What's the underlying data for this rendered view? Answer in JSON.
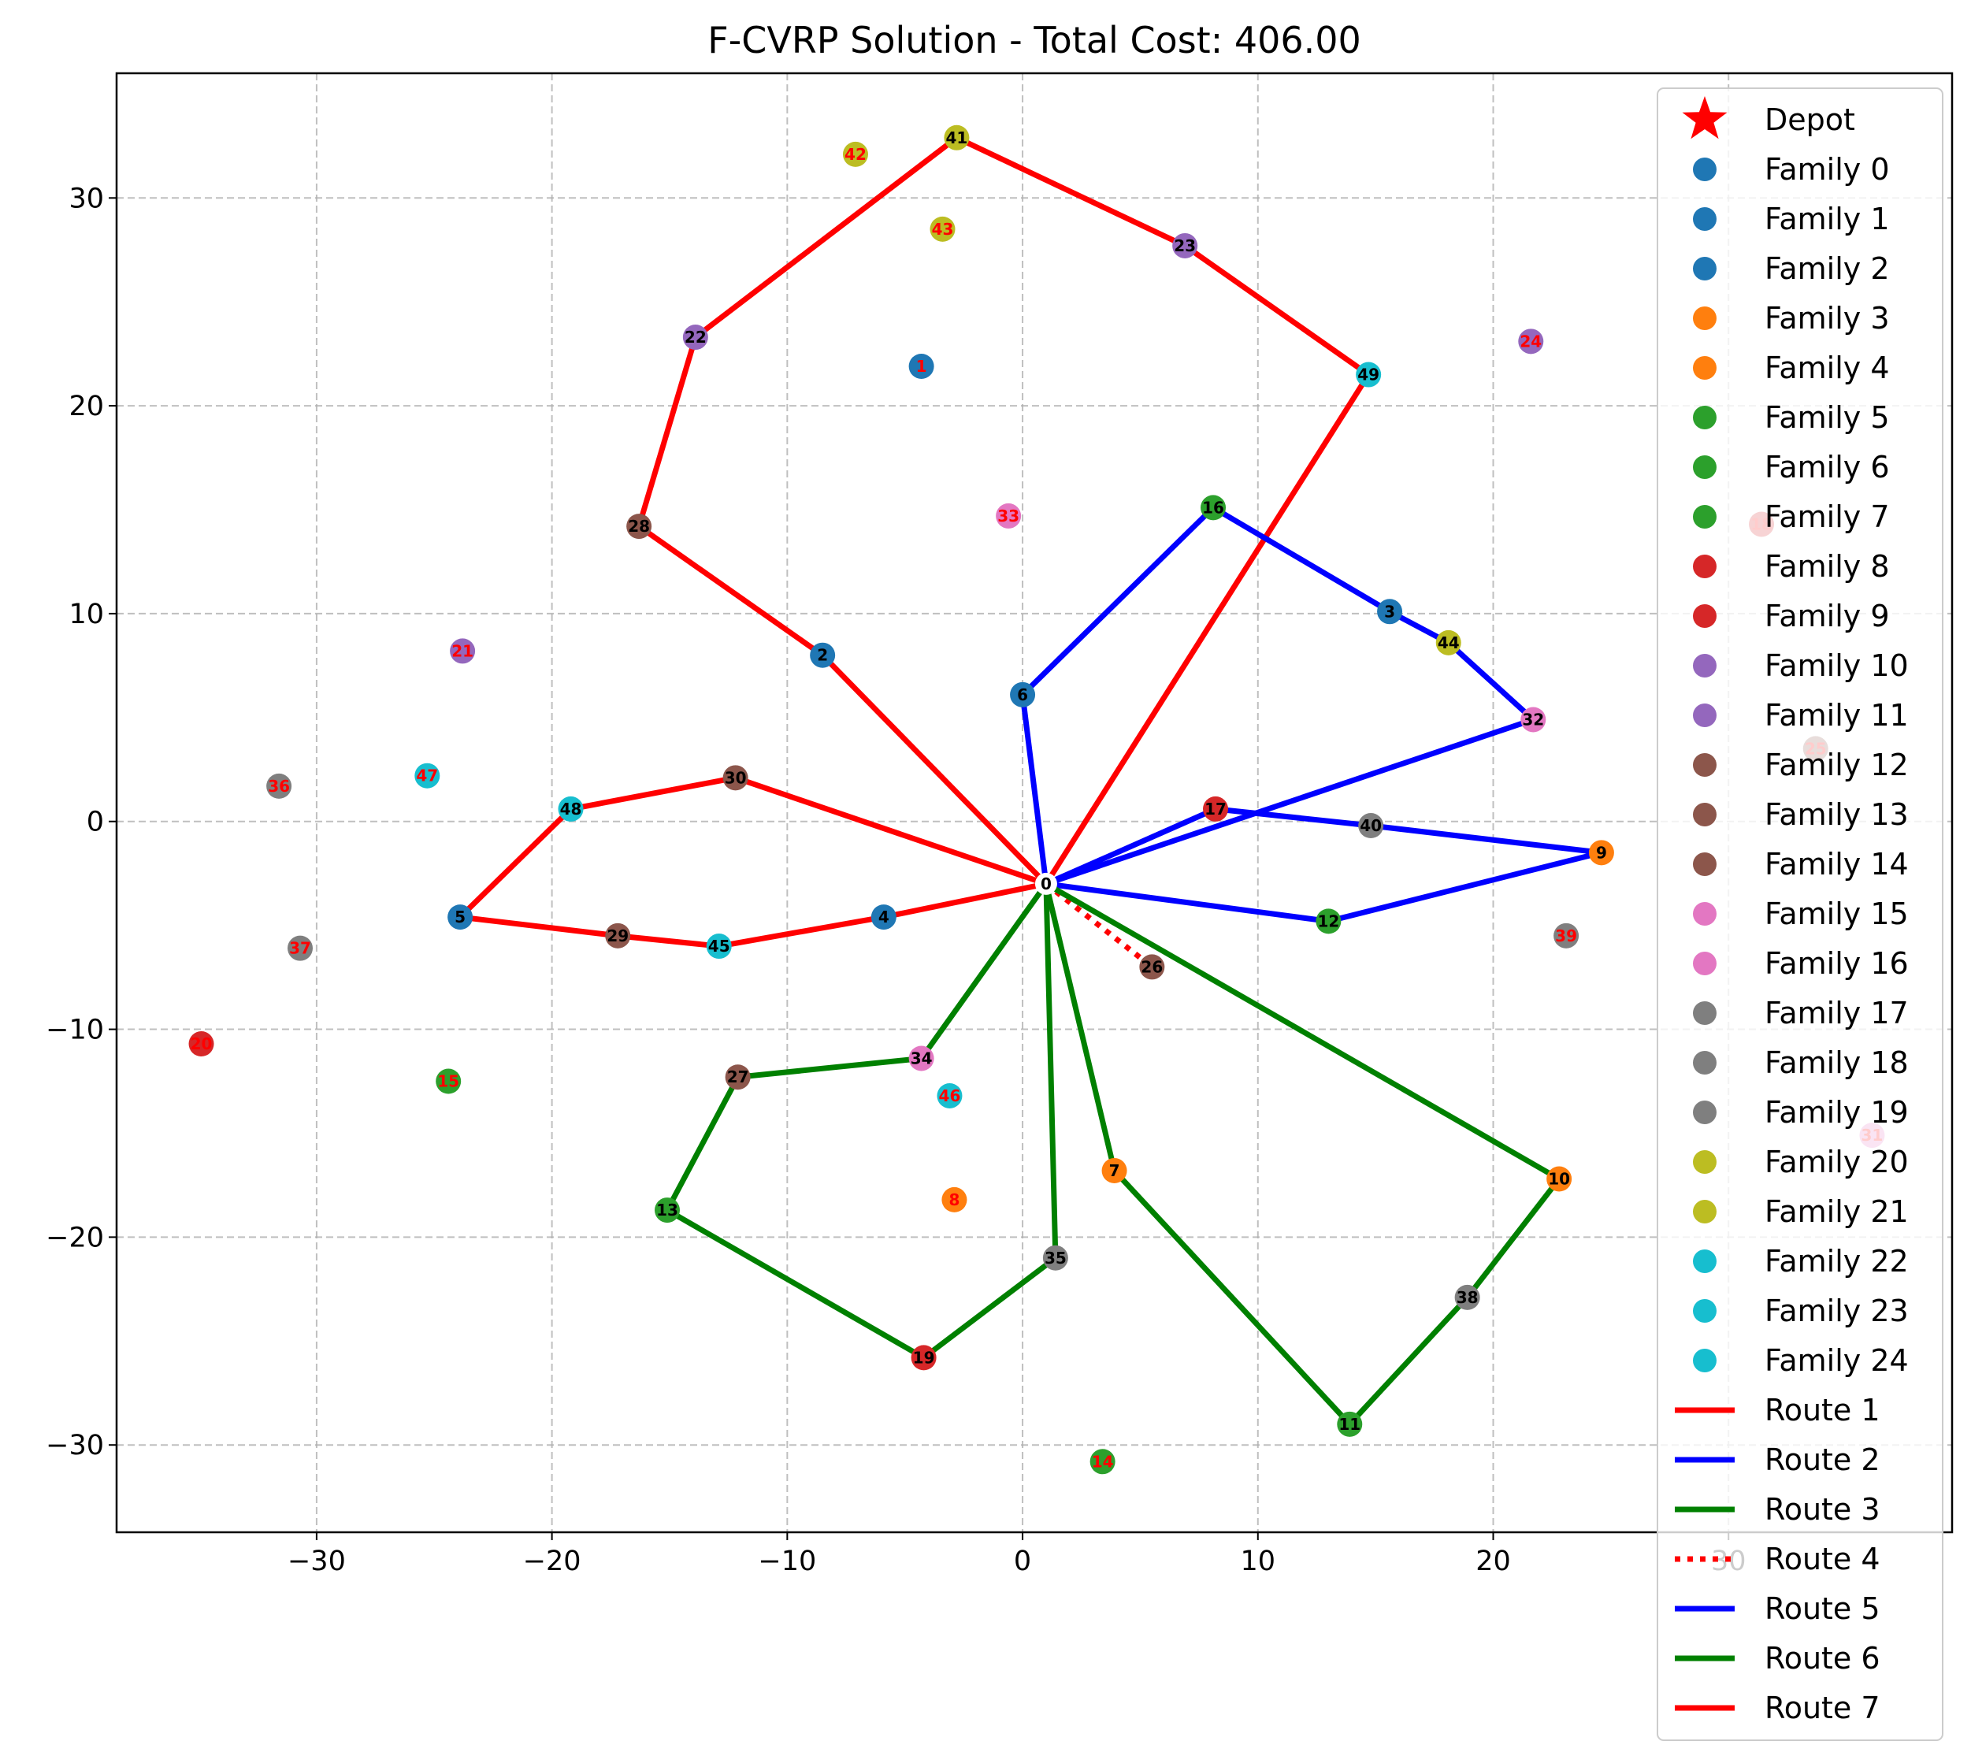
{
  "chart_data": {
    "type": "scatter",
    "title": "F-CVRP Solution - Total Cost: 406.00",
    "xlabel": "",
    "ylabel": "",
    "xlim": [
      -38.5,
      39.5
    ],
    "ylim": [
      -34.2,
      36.0
    ],
    "xticks": [
      -30,
      -20,
      -10,
      0,
      10,
      20,
      30
    ],
    "yticks": [
      -30,
      -20,
      -10,
      0,
      10,
      20,
      30
    ],
    "grid": true,
    "legend_position": "right",
    "depot": {
      "label": "0",
      "x": 1.0,
      "y": -3.0,
      "color": "#ff0000"
    },
    "nodes": [
      {
        "id": "1",
        "x": -4.3,
        "y": 21.9,
        "family": 1,
        "visited": false
      },
      {
        "id": "2",
        "x": -8.5,
        "y": 8.0,
        "family": 2,
        "visited": true
      },
      {
        "id": "3",
        "x": 15.6,
        "y": 10.1,
        "family": 0,
        "visited": true
      },
      {
        "id": "4",
        "x": -5.9,
        "y": -4.6,
        "family": 0,
        "visited": true
      },
      {
        "id": "5",
        "x": -23.9,
        "y": -4.6,
        "family": 0,
        "visited": true
      },
      {
        "id": "6",
        "x": 0.0,
        "y": 6.1,
        "family": 1,
        "visited": true
      },
      {
        "id": "7",
        "x": 3.9,
        "y": -16.8,
        "family": 3,
        "visited": true
      },
      {
        "id": "8",
        "x": -2.9,
        "y": -18.2,
        "family": 4,
        "visited": false
      },
      {
        "id": "9",
        "x": 24.6,
        "y": -1.5,
        "family": 4,
        "visited": true
      },
      {
        "id": "10",
        "x": 22.8,
        "y": -17.2,
        "family": 3,
        "visited": true
      },
      {
        "id": "11",
        "x": 13.9,
        "y": -29.0,
        "family": 5,
        "visited": true
      },
      {
        "id": "12",
        "x": 13.0,
        "y": -4.8,
        "family": 6,
        "visited": true
      },
      {
        "id": "13",
        "x": -15.1,
        "y": -18.7,
        "family": 7,
        "visited": true
      },
      {
        "id": "14",
        "x": 3.4,
        "y": -30.8,
        "family": 5,
        "visited": false
      },
      {
        "id": "15",
        "x": -24.4,
        "y": -12.5,
        "family": 6,
        "visited": false
      },
      {
        "id": "16",
        "x": 8.1,
        "y": 15.1,
        "family": 7,
        "visited": true
      },
      {
        "id": "17",
        "x": 8.2,
        "y": 0.6,
        "family": 8,
        "visited": true
      },
      {
        "id": "18",
        "x": 31.4,
        "y": 14.3,
        "family": 9,
        "visited": false
      },
      {
        "id": "19",
        "x": -4.2,
        "y": -25.8,
        "family": 9,
        "visited": true
      },
      {
        "id": "20",
        "x": -34.9,
        "y": -10.7,
        "family": 8,
        "visited": false
      },
      {
        "id": "21",
        "x": -23.8,
        "y": 8.2,
        "family": 11,
        "visited": false
      },
      {
        "id": "22",
        "x": -13.9,
        "y": 23.3,
        "family": 10,
        "visited": true
      },
      {
        "id": "23",
        "x": 6.9,
        "y": 27.7,
        "family": 11,
        "visited": true
      },
      {
        "id": "24",
        "x": 21.6,
        "y": 23.1,
        "family": 10,
        "visited": false
      },
      {
        "id": "25",
        "x": 33.7,
        "y": 3.5,
        "family": 12,
        "visited": false
      },
      {
        "id": "26",
        "x": 5.5,
        "y": -7.0,
        "family": 13,
        "visited": true
      },
      {
        "id": "27",
        "x": -12.1,
        "y": -12.3,
        "family": 14,
        "visited": true
      },
      {
        "id": "28",
        "x": -16.3,
        "y": 14.2,
        "family": 12,
        "visited": true
      },
      {
        "id": "29",
        "x": -17.2,
        "y": -5.5,
        "family": 13,
        "visited": true
      },
      {
        "id": "30",
        "x": -12.2,
        "y": 2.1,
        "family": 14,
        "visited": true
      },
      {
        "id": "31",
        "x": 36.1,
        "y": -15.1,
        "family": 15,
        "visited": false
      },
      {
        "id": "32",
        "x": 21.7,
        "y": 4.9,
        "family": 16,
        "visited": true
      },
      {
        "id": "33",
        "x": -0.6,
        "y": 14.7,
        "family": 15,
        "visited": false
      },
      {
        "id": "34",
        "x": -4.3,
        "y": -11.4,
        "family": 16,
        "visited": true
      },
      {
        "id": "35",
        "x": 1.4,
        "y": -21.0,
        "family": 17,
        "visited": true
      },
      {
        "id": "36",
        "x": -31.6,
        "y": 1.7,
        "family": 18,
        "visited": false
      },
      {
        "id": "37",
        "x": -30.7,
        "y": -6.1,
        "family": 19,
        "visited": false
      },
      {
        "id": "38",
        "x": 18.9,
        "y": -22.9,
        "family": 17,
        "visited": true
      },
      {
        "id": "39",
        "x": 23.1,
        "y": -5.5,
        "family": 18,
        "visited": false
      },
      {
        "id": "40",
        "x": 14.8,
        "y": -0.2,
        "family": 19,
        "visited": true
      },
      {
        "id": "41",
        "x": -2.8,
        "y": 32.9,
        "family": 20,
        "visited": true
      },
      {
        "id": "42",
        "x": -7.1,
        "y": 32.1,
        "family": 21,
        "visited": false
      },
      {
        "id": "43",
        "x": -3.4,
        "y": 28.5,
        "family": 21,
        "visited": false
      },
      {
        "id": "44",
        "x": 18.1,
        "y": 8.6,
        "family": 20,
        "visited": true
      },
      {
        "id": "45",
        "x": -12.9,
        "y": -6.0,
        "family": 22,
        "visited": true
      },
      {
        "id": "46",
        "x": -3.1,
        "y": -13.2,
        "family": 23,
        "visited": false
      },
      {
        "id": "47",
        "x": -25.3,
        "y": 2.2,
        "family": 24,
        "visited": false
      },
      {
        "id": "48",
        "x": -19.2,
        "y": 0.6,
        "family": 22,
        "visited": true
      },
      {
        "id": "49",
        "x": 14.7,
        "y": 21.5,
        "family": 23,
        "visited": true
      }
    ],
    "families": [
      {
        "name": "Family 0",
        "color": "#1f77b4"
      },
      {
        "name": "Family 1",
        "color": "#1f77b4"
      },
      {
        "name": "Family 2",
        "color": "#1f77b4"
      },
      {
        "name": "Family 3",
        "color": "#ff7f0e"
      },
      {
        "name": "Family 4",
        "color": "#ff7f0e"
      },
      {
        "name": "Family 5",
        "color": "#2ca02c"
      },
      {
        "name": "Family 6",
        "color": "#2ca02c"
      },
      {
        "name": "Family 7",
        "color": "#2ca02c"
      },
      {
        "name": "Family 8",
        "color": "#d62728"
      },
      {
        "name": "Family 9",
        "color": "#d62728"
      },
      {
        "name": "Family 10",
        "color": "#9467bd"
      },
      {
        "name": "Family 11",
        "color": "#9467bd"
      },
      {
        "name": "Family 12",
        "color": "#8c564b"
      },
      {
        "name": "Family 13",
        "color": "#8c564b"
      },
      {
        "name": "Family 14",
        "color": "#8c564b"
      },
      {
        "name": "Family 15",
        "color": "#e377c2"
      },
      {
        "name": "Family 16",
        "color": "#e377c2"
      },
      {
        "name": "Family 17",
        "color": "#7f7f7f"
      },
      {
        "name": "Family 18",
        "color": "#7f7f7f"
      },
      {
        "name": "Family 19",
        "color": "#7f7f7f"
      },
      {
        "name": "Family 20",
        "color": "#bcbd22"
      },
      {
        "name": "Family 21",
        "color": "#bcbd22"
      },
      {
        "name": "Family 22",
        "color": "#17becf"
      },
      {
        "name": "Family 23",
        "color": "#17becf"
      },
      {
        "name": "Family 24",
        "color": "#17becf"
      }
    ],
    "routes": [
      {
        "name": "Route 1",
        "color": "#ff0000",
        "style": "solid",
        "path": [
          "0",
          "2",
          "28",
          "22",
          "41",
          "23",
          "49",
          "0"
        ]
      },
      {
        "name": "Route 2",
        "color": "#0000ff",
        "style": "solid",
        "path": [
          "0",
          "6",
          "16",
          "3",
          "44",
          "32",
          "0"
        ]
      },
      {
        "name": "Route 3",
        "color": "#008000",
        "style": "solid",
        "path": [
          "0",
          "34",
          "27",
          "13",
          "19",
          "35",
          "0"
        ]
      },
      {
        "name": "Route 4",
        "color": "#ff0000",
        "style": "dotted",
        "path": [
          "0",
          "26"
        ]
      },
      {
        "name": "Route 5",
        "color": "#0000ff",
        "style": "solid",
        "path": [
          "0",
          "17",
          "40",
          "9",
          "12",
          "0"
        ]
      },
      {
        "name": "Route 6",
        "color": "#008000",
        "style": "solid",
        "path": [
          "0",
          "7",
          "11",
          "38",
          "10",
          "0"
        ]
      },
      {
        "name": "Route 7",
        "color": "#ff0000",
        "style": "solid",
        "path": [
          "0",
          "30",
          "48",
          "5",
          "29",
          "45",
          "4",
          "0"
        ]
      }
    ],
    "legend_depot_label": "Depot"
  }
}
